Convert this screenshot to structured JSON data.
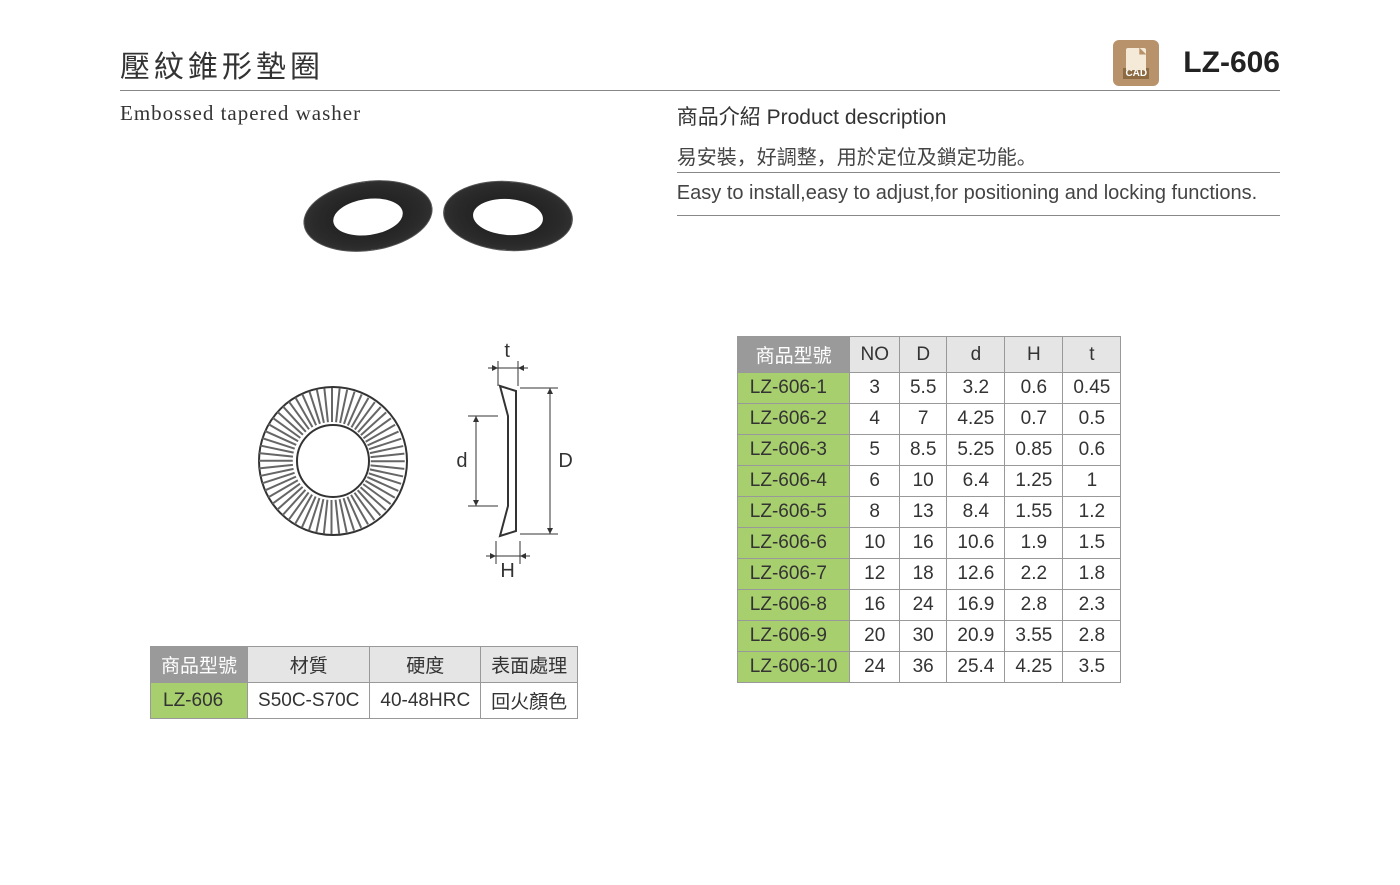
{
  "header": {
    "title_cn": "壓紋錐形墊圈",
    "part_no": "LZ-606",
    "cad_label": "CAD"
  },
  "subtitle_en": "Embossed tapered washer",
  "description": {
    "title": "商品介紹 Product description",
    "cn": "易安裝，好調整，用於定位及鎖定功能。",
    "en": "Easy to install,easy to adjust,for positioning and locking functions."
  },
  "diagram_labels": {
    "t": "t",
    "d": "d",
    "D": "D",
    "H": "H"
  },
  "material_table": {
    "headers": [
      "商品型號",
      "材質",
      "硬度",
      "表面處理"
    ],
    "row": [
      "LZ-606",
      "S50C-S70C",
      "40-48HRC",
      "回火顏色"
    ]
  },
  "spec_table": {
    "headers": [
      "商品型號",
      "NO",
      "D",
      "d",
      "H",
      "t"
    ],
    "rows": [
      [
        "LZ-606-1",
        "3",
        "5.5",
        "3.2",
        "0.6",
        "0.45"
      ],
      [
        "LZ-606-2",
        "4",
        "7",
        "4.25",
        "0.7",
        "0.5"
      ],
      [
        "LZ-606-3",
        "5",
        "8.5",
        "5.25",
        "0.85",
        "0.6"
      ],
      [
        "LZ-606-4",
        "6",
        "10",
        "6.4",
        "1.25",
        "1"
      ],
      [
        "LZ-606-5",
        "8",
        "13",
        "8.4",
        "1.55",
        "1.2"
      ],
      [
        "LZ-606-6",
        "10",
        "16",
        "10.6",
        "1.9",
        "1.5"
      ],
      [
        "LZ-606-7",
        "12",
        "18",
        "12.6",
        "2.2",
        "1.8"
      ],
      [
        "LZ-606-8",
        "16",
        "24",
        "16.9",
        "2.8",
        "2.3"
      ],
      [
        "LZ-606-9",
        "20",
        "30",
        "20.9",
        "3.55",
        "2.8"
      ],
      [
        "LZ-606-10",
        "24",
        "36",
        "25.4",
        "4.25",
        "3.5"
      ]
    ]
  },
  "colors": {
    "header_gray": "#9a9a9a",
    "header_lightgray": "#e5e5e5",
    "cell_green": "#a8cf6e",
    "border": "#999999",
    "divider": "#888888",
    "text": "#333333",
    "cad_bg": "#b8926a"
  }
}
